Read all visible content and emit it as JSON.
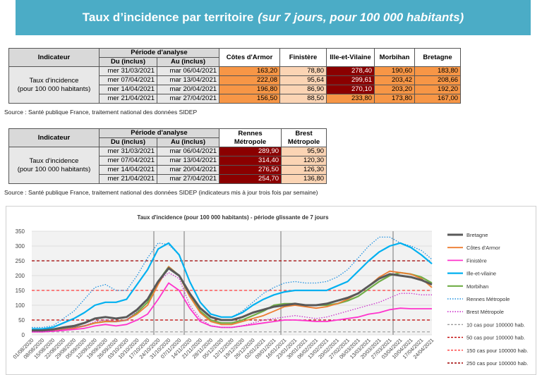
{
  "header": {
    "title": "Taux d’incidence par territoire",
    "subtitle": "(sur 7 jours, pour 100 000 habitants)"
  },
  "table1": {
    "indicator_header": "Indicateur",
    "period_header": "Période d'analyse",
    "from_header": "Du (inclus)",
    "to_header": "Au (inclus)",
    "territories": [
      [
        "Côtes d'Armor"
      ],
      [
        "Finistère"
      ],
      [
        "Ille-et-Vilaine"
      ],
      [
        "Morbihan"
      ],
      [
        "Bretagne"
      ]
    ],
    "indicator_label": [
      "Taux d'incidence",
      "(pour 100 000 habitants)"
    ],
    "rows": [
      [
        "mer 31/03/2021",
        "mar 06/04/2021",
        "163,20",
        "78,80",
        "278,40",
        "190,60",
        "183,80"
      ],
      [
        "mer 07/04/2021",
        "mar 13/04/2021",
        "222,08",
        "95,64",
        "299,61",
        "203,42",
        "208,66"
      ],
      [
        "mer 14/04/2021",
        "mar 20/04/2021",
        "196,80",
        "86,90",
        "270,10",
        "203,20",
        "192,20"
      ],
      [
        "mer 21/04/2021",
        "mar 27/04/2021",
        "156,50",
        "88,50",
        "233,80",
        "173,80",
        "167,00"
      ]
    ],
    "source": "Source  : Santé publique France, traitement national des données SIDEP"
  },
  "table2": {
    "indicator_header": "Indicateur",
    "period_header": "Période d'analyse",
    "from_header": "Du (inclus)",
    "to_header": "Au (inclus)",
    "territories": [
      [
        "Rennes",
        "Métropole"
      ],
      [
        "Brest",
        "Métropole"
      ]
    ],
    "indicator_label": [
      "Taux d'incidence",
      "(pour 100 000 habitants)"
    ],
    "rows": [
      [
        "mer 31/03/2021",
        "mar 06/04/2021",
        "289,90",
        "95,90"
      ],
      [
        "mer 07/04/2021",
        "mar 13/04/2021",
        "314,40",
        "120,30"
      ],
      [
        "mer 14/04/2021",
        "mar 20/04/2021",
        "276,50",
        "126,30"
      ],
      [
        "mer 21/04/2021",
        "mar 27/04/2021",
        "254,70",
        "136,80"
      ]
    ],
    "source": "Source  : Santé publique France, traitement national des données SIDEP (indicateurs mis à jour trois fois par semaine)"
  },
  "chart_data": {
    "type": "line",
    "title": "Taux d'incidence (pour 100 000 habitants) - période glissante de 7 jours",
    "categories": [
      "01/08/2020",
      "08/08/2020",
      "15/08/2020",
      "22/08/2020",
      "29/08/2020",
      "05/09/2020",
      "12/09/2020",
      "19/09/2020",
      "26/09/2020",
      "03/10/2020",
      "10/10/2020",
      "17/10/2020",
      "24/10/2020",
      "31/10/2020",
      "07/11/2020",
      "14/11/2020",
      "21/11/2020",
      "28/11/2020",
      "05/12/2020",
      "12/12/2020",
      "19/12/2020",
      "26/12/2020",
      "02/01/2021",
      "09/01/2021",
      "16/01/2021",
      "23/01/2021",
      "30/01/2021",
      "06/02/2021",
      "13/02/2021",
      "20/02/2021",
      "27/02/2021",
      "06/03/2021",
      "13/03/2021",
      "20/03/2021",
      "27/03/2021",
      "03/04/2021",
      "10/04/2021",
      "17/04/2021",
      "24/04/2021"
    ],
    "ylim": [
      0,
      350
    ],
    "yticks": [
      0,
      50,
      100,
      150,
      200,
      250,
      300,
      350
    ],
    "grid": true,
    "legend": "right",
    "series": [
      {
        "name": "Bretagne",
        "color": "#595959",
        "width": 3,
        "dash": "solid",
        "values": [
          15,
          15,
          18,
          25,
          30,
          40,
          55,
          60,
          55,
          60,
          85,
          120,
          180,
          225,
          200,
          140,
          90,
          60,
          50,
          50,
          60,
          75,
          85,
          95,
          100,
          105,
          100,
          100,
          105,
          115,
          125,
          140,
          165,
          190,
          205,
          200,
          195,
          185,
          170
        ]
      },
      {
        "name": "Côtes d'Armor",
        "color": "#ed7d31",
        "width": 1.8,
        "dash": "solid",
        "values": [
          12,
          12,
          14,
          18,
          22,
          30,
          40,
          45,
          45,
          50,
          70,
          100,
          170,
          230,
          200,
          130,
          75,
          45,
          35,
          35,
          45,
          55,
          65,
          80,
          95,
          100,
          95,
          90,
          95,
          105,
          120,
          140,
          165,
          195,
          215,
          210,
          205,
          190,
          160
        ]
      },
      {
        "name": "Finistère",
        "color": "#ff33cc",
        "width": 1.8,
        "dash": "solid",
        "values": [
          10,
          10,
          12,
          15,
          18,
          22,
          30,
          35,
          30,
          35,
          50,
          70,
          120,
          175,
          150,
          90,
          45,
          30,
          25,
          25,
          30,
          35,
          40,
          45,
          50,
          50,
          48,
          45,
          45,
          50,
          55,
          60,
          70,
          75,
          85,
          90,
          88,
          88,
          88
        ]
      },
      {
        "name": "Ille-et-vilaine",
        "color": "#00b0f0",
        "width": 2.2,
        "dash": "solid",
        "values": [
          20,
          20,
          25,
          40,
          55,
          75,
          100,
          110,
          110,
          120,
          170,
          220,
          290,
          310,
          270,
          180,
          110,
          70,
          60,
          60,
          75,
          100,
          120,
          135,
          145,
          150,
          150,
          150,
          150,
          165,
          180,
          215,
          250,
          280,
          300,
          310,
          295,
          270,
          240
        ]
      },
      {
        "name": "Morbihan",
        "color": "#70ad47",
        "width": 2.2,
        "dash": "solid",
        "values": [
          12,
          12,
          15,
          20,
          25,
          30,
          40,
          45,
          45,
          50,
          75,
          110,
          180,
          230,
          200,
          130,
          80,
          50,
          40,
          40,
          50,
          65,
          80,
          100,
          105,
          105,
          100,
          100,
          100,
          105,
          115,
          130,
          155,
          180,
          200,
          210,
          205,
          195,
          175
        ]
      },
      {
        "name": "Rennes Métropole",
        "color": "#1e90e0",
        "width": 1.3,
        "dash": "dotted",
        "values": [
          25,
          25,
          30,
          55,
          80,
          120,
          160,
          170,
          150,
          150,
          200,
          260,
          310,
          305,
          270,
          180,
          110,
          70,
          60,
          60,
          80,
          110,
          140,
          160,
          175,
          180,
          175,
          175,
          180,
          195,
          220,
          260,
          300,
          330,
          330,
          310,
          300,
          285,
          255
        ]
      },
      {
        "name": "Brest Métropole",
        "color": "#cc33cc",
        "width": 1.3,
        "dash": "dotted",
        "values": [
          10,
          10,
          12,
          18,
          25,
          30,
          45,
          50,
          45,
          50,
          80,
          120,
          180,
          210,
          190,
          100,
          55,
          30,
          25,
          25,
          30,
          40,
          50,
          55,
          60,
          65,
          60,
          55,
          60,
          70,
          80,
          90,
          100,
          110,
          125,
          140,
          140,
          135,
          135
        ]
      }
    ],
    "reference_lines": [
      {
        "name": "10 cas pour 100000 hab.",
        "color": "#9a9a9a",
        "value": 10
      },
      {
        "name": "50 cas pour 100000 hab.",
        "color": "#c00000",
        "value": 50
      },
      {
        "name": "150 cas pour 100000 hab.",
        "color": "#ff3b3b",
        "value": 150
      },
      {
        "name": "250 cas pour 100000 hab.",
        "color": "#a00000",
        "value": 250
      }
    ]
  }
}
